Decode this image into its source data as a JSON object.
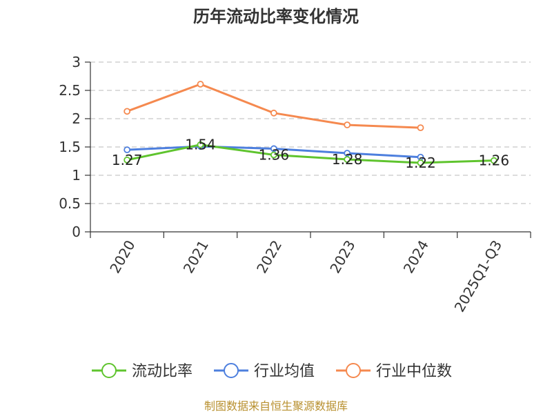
{
  "chart_data": {
    "type": "line",
    "title": "历年流动比率变化情况",
    "categories": [
      "2020",
      "2021",
      "2022",
      "2023",
      "2024",
      "2025Q1-Q3"
    ],
    "ylim": [
      0,
      3
    ],
    "yticks": [
      "0",
      "0.5",
      "1",
      "1.5",
      "2",
      "2.5",
      "3"
    ],
    "grid": true,
    "legend_position": "bottom",
    "series": [
      {
        "name": "流动比率",
        "color": "#5fc42e",
        "values": [
          1.27,
          1.54,
          1.36,
          1.28,
          1.22,
          1.26
        ],
        "labels": [
          "1.27",
          "1.54",
          "1.36",
          "1.28",
          "1.22",
          "1.26"
        ]
      },
      {
        "name": "行业均值",
        "color": "#4d7fde",
        "values": [
          1.45,
          1.51,
          1.47,
          1.39,
          1.32,
          null
        ]
      },
      {
        "name": "行业中位数",
        "color": "#f5894f",
        "values": [
          2.13,
          2.61,
          2.1,
          1.89,
          1.84,
          null
        ]
      }
    ]
  },
  "footer": {
    "source": "制图数据来自恒生聚源数据库"
  }
}
